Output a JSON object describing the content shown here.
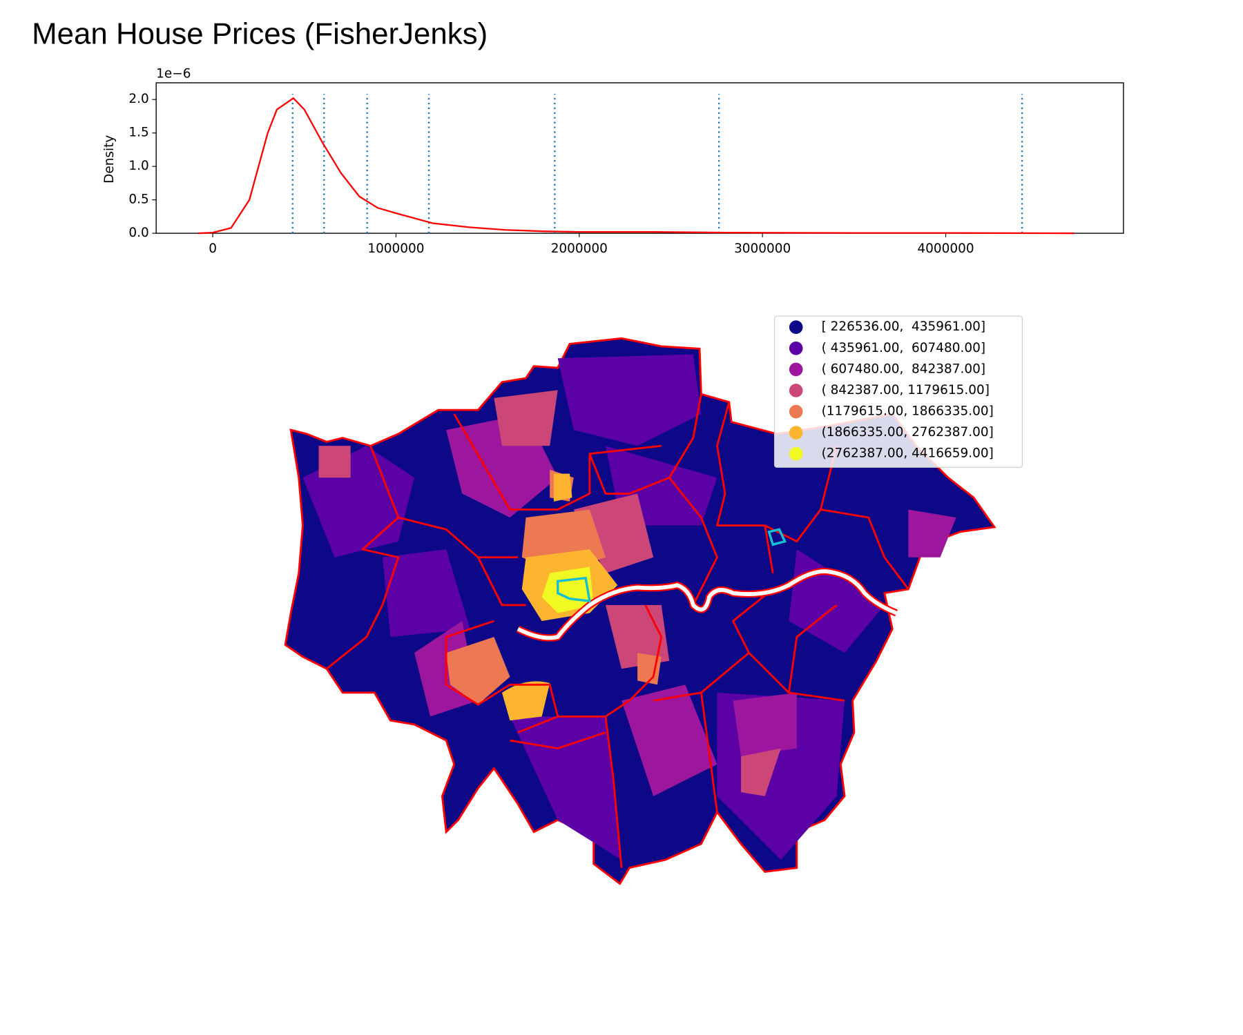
{
  "title": "Mean House Prices (FisherJenks)",
  "chart_data": {
    "type": "line",
    "ylabel": "Density",
    "y_offset_label": "1e−6",
    "x": [
      -80000,
      0,
      100000,
      200000,
      300000,
      350000,
      440000,
      500000,
      600000,
      700000,
      800000,
      900000,
      1000000,
      1200000,
      1400000,
      1600000,
      1800000,
      2000000,
      2400000,
      2800000,
      3500000,
      4000000,
      4700000
    ],
    "series": [
      {
        "color": "#ff0000",
        "values": [
          0,
          0.01,
          0.08,
          0.5,
          1.5,
          1.85,
          2.02,
          1.85,
          1.35,
          0.9,
          0.55,
          0.38,
          0.3,
          0.15,
          0.09,
          0.05,
          0.03,
          0.02,
          0.02,
          0.01,
          0.005,
          0.005,
          0
        ]
      }
    ],
    "breaks": [
      435961,
      607480,
      842387,
      1179615,
      1866335,
      2762387,
      4416659
    ],
    "breaks_color": "#1f77b4",
    "xlim": [
      -308700,
      4970000
    ],
    "xticks": [
      0,
      1000000,
      2000000,
      3000000,
      4000000
    ],
    "ylim": [
      0,
      2.25
    ],
    "yticks": [
      {
        "value": 0,
        "label": "0.0"
      },
      0.5,
      {
        "value": 1,
        "label": "1.0"
      },
      1.5,
      {
        "value": 2,
        "label": "2.0"
      }
    ]
  },
  "map": {
    "legend": [
      {
        "label": "[ 226536.00,  435961.00]",
        "color": "#0d0887"
      },
      {
        "label": "( 435961.00,  607480.00]",
        "color": "#5c01a6"
      },
      {
        "label": "( 607480.00,  842387.00]",
        "color": "#9c179e"
      },
      {
        "label": "( 842387.00, 1179615.00]",
        "color": "#cc4778"
      },
      {
        "label": "(1179615.00, 1866335.00]",
        "color": "#ed7953"
      },
      {
        "label": "(1866335.00, 2762387.00]",
        "color": "#fdb42f"
      },
      {
        "label": "(2762387.00, 4416659.00]",
        "color": "#f0f921"
      }
    ]
  }
}
